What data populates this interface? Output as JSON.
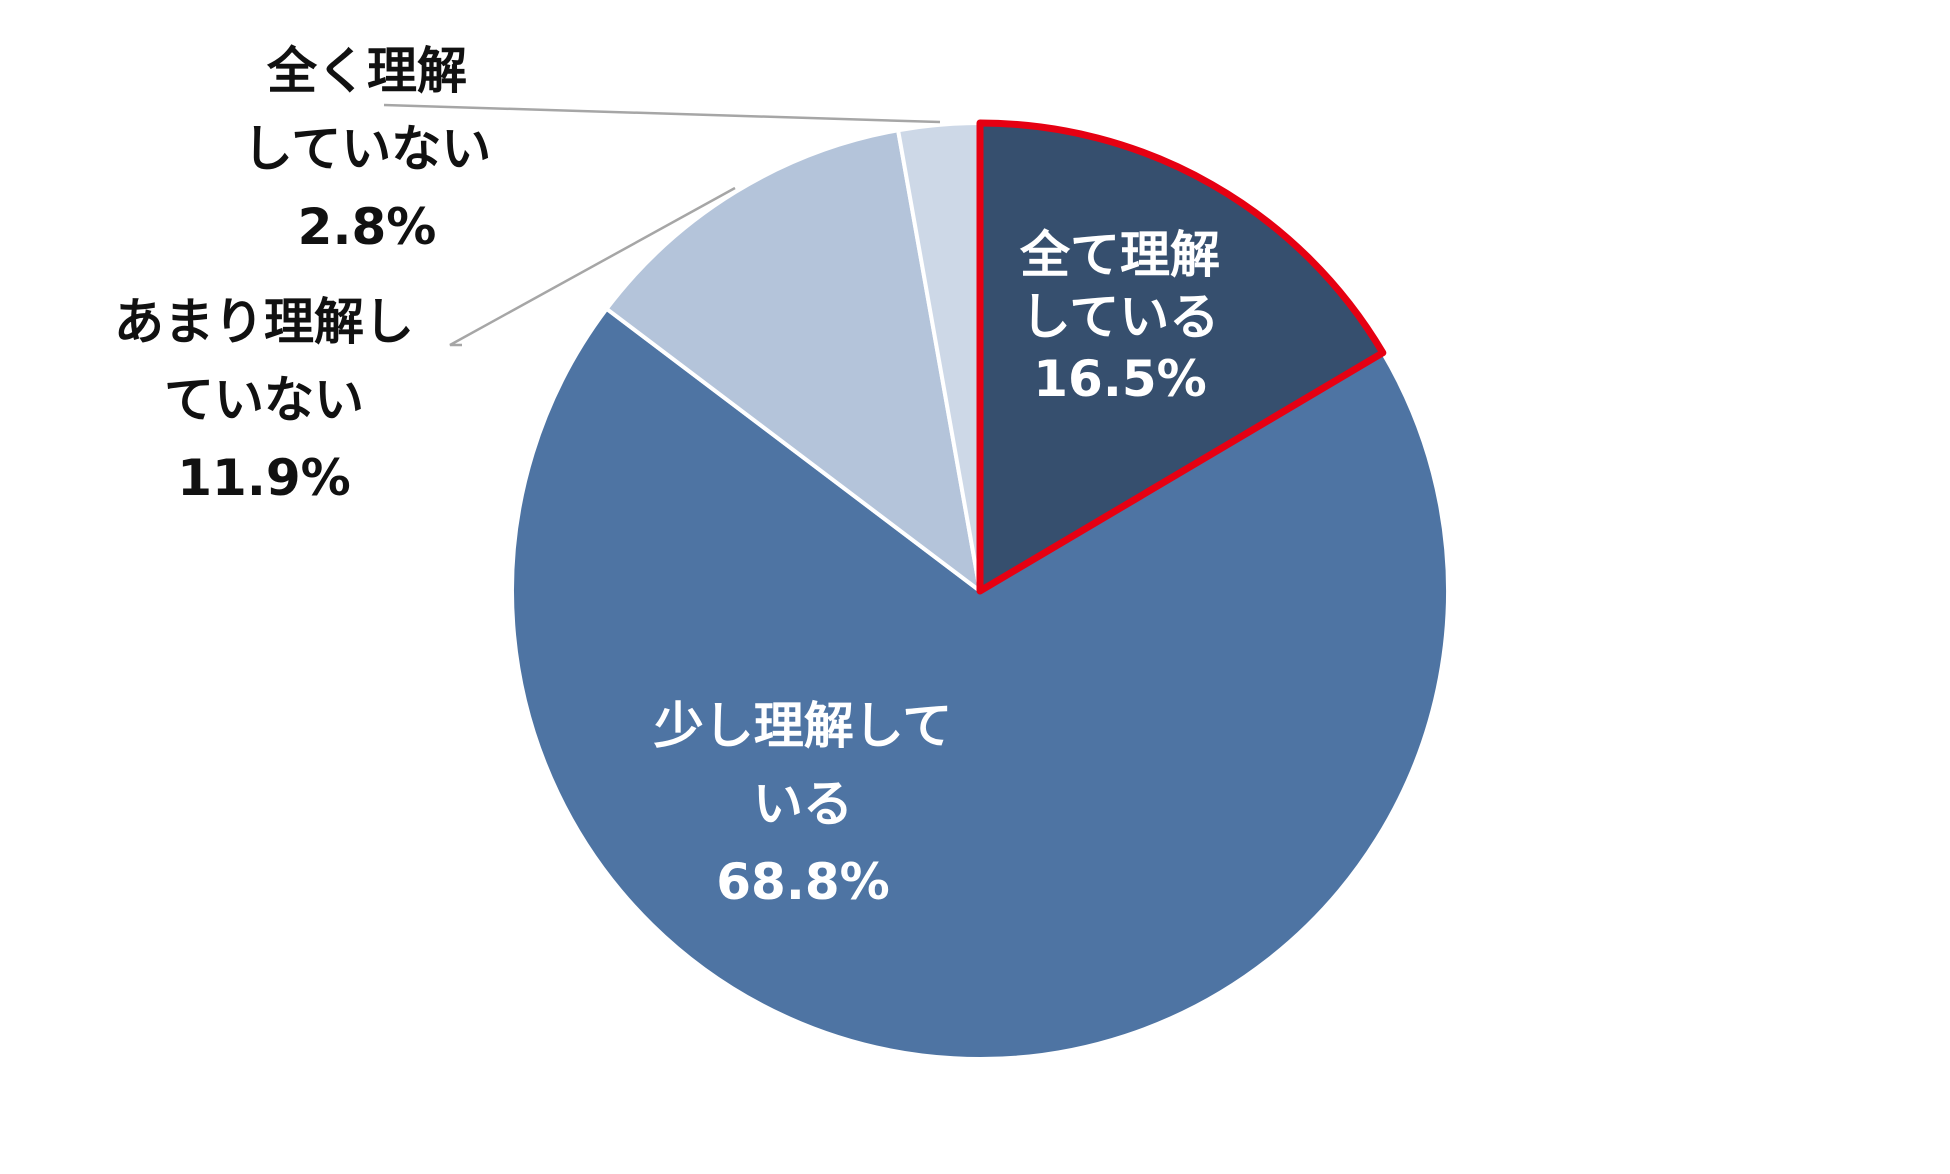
{
  "chart_data": {
    "type": "pie",
    "title": "",
    "start_angle_deg": 0,
    "direction": "clockwise",
    "slices": [
      {
        "label_lines": [
          "全て理解",
          "している"
        ],
        "value": 16.5,
        "value_label": "16.5%",
        "color": "#364f6e",
        "highlight": "#e60012",
        "label_position": "inside"
      },
      {
        "label_lines": [
          "少し理解して",
          "いる"
        ],
        "value": 68.8,
        "value_label": "68.8%",
        "color": "#4e74a3",
        "highlight": null,
        "label_position": "inside"
      },
      {
        "label_lines": [
          "あまり理解し",
          "ていない"
        ],
        "value": 11.9,
        "value_label": "11.9%",
        "color": "#b4c4da",
        "highlight": null,
        "label_position": "outside-left"
      },
      {
        "label_lines": [
          "全く理解",
          "していない"
        ],
        "value": 2.8,
        "value_label": "2.8%",
        "color": "#cdd8e7",
        "highlight": null,
        "label_position": "outside-top"
      }
    ],
    "legend": "none"
  }
}
